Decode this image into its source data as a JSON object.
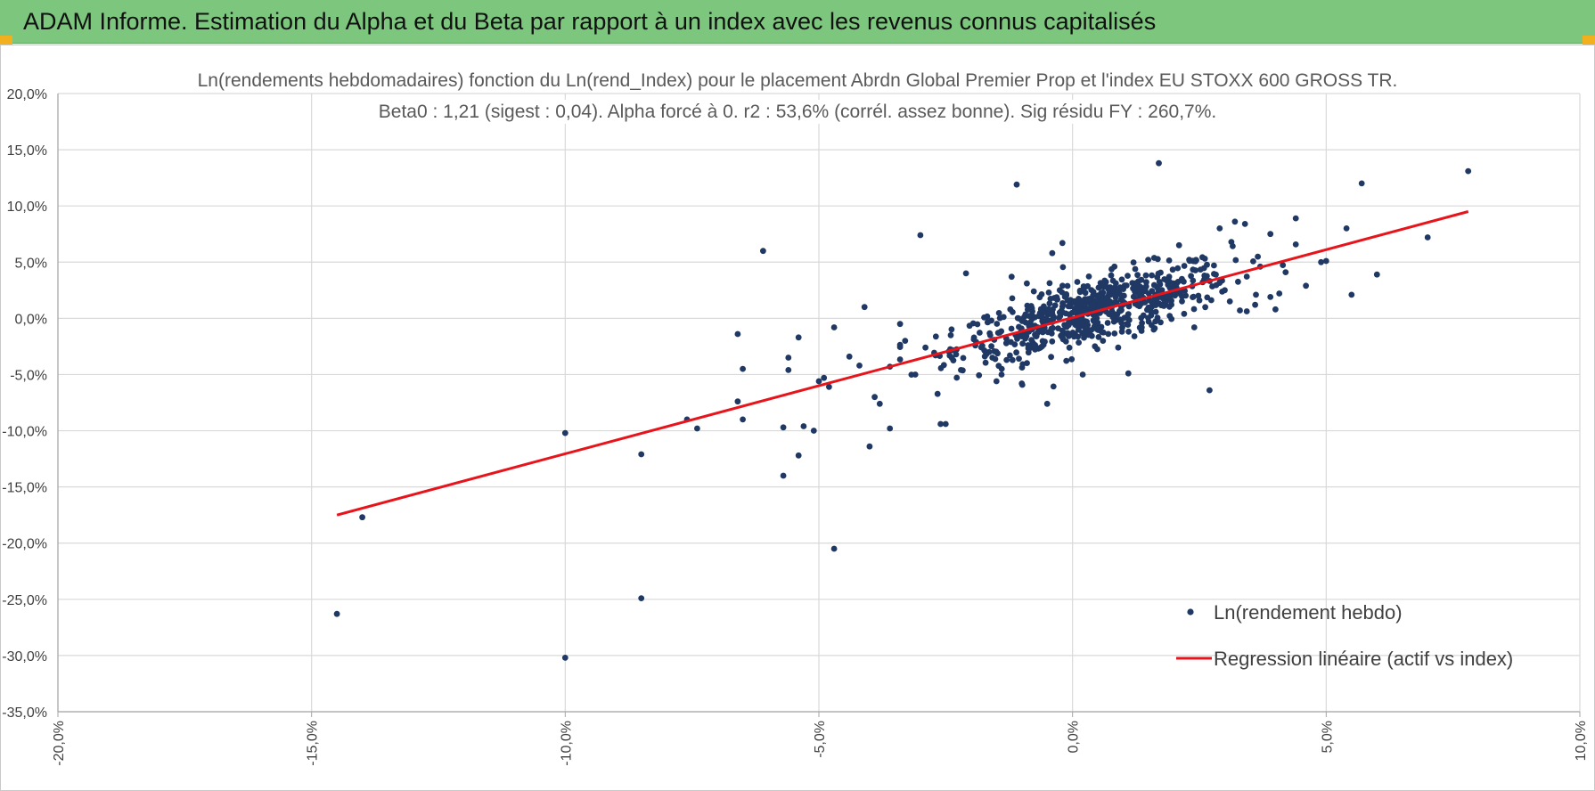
{
  "header": {
    "title": "ADAM Informe. Estimation du Alpha et du Beta par rapport à un index avec les revenus connus capitalisés"
  },
  "colors": {
    "banner": "#7dc67e",
    "points": "#203864",
    "regression": "#e8141b",
    "grid": "#d9d9d9",
    "corner_marks": "#f2b01e"
  },
  "chart_data": {
    "type": "scatter",
    "title_lines": [
      "Ln(rendements hebdomadaires) fonction du Ln(rend_Index) pour le placement Abrdn Global Premier Prop et l'index EU STOXX 600 GROSS TR.",
      "Beta0 : 1,21 (sigest : 0,04). Alpha forcé à 0. r2 : 53,6% (corrél. assez bonne). Sig résidu FY : 260,7%."
    ],
    "xlim": [
      -20,
      10
    ],
    "ylim": [
      -35,
      20
    ],
    "x_ticks": [
      "-20,0%",
      "-15,0%",
      "-10,0%",
      "-5,0%",
      "0,0%",
      "5,0%",
      "10,0%"
    ],
    "y_ticks": [
      "20,0%",
      "15,0%",
      "10,0%",
      "5,0%",
      "0,0%",
      "-5,0%",
      "-10,0%",
      "-15,0%",
      "-20,0%",
      "-25,0%",
      "-30,0%",
      "-35,0%"
    ],
    "grid": "vertical and horizontal major gridlines",
    "legend": {
      "placement": "bottom-right",
      "entries": [
        "Ln(rendement hebdo)",
        "Regression linéaire (actif vs index)"
      ]
    },
    "series": [
      {
        "name": "Ln(rendement hebdo)",
        "marker": "dot",
        "points": [
          [
            -14.5,
            -26.3
          ],
          [
            -14.0,
            -17.7
          ],
          [
            -10.0,
            -30.2
          ],
          [
            -10.0,
            -10.2
          ],
          [
            -8.5,
            -24.9
          ],
          [
            -8.5,
            -12.1
          ],
          [
            -7.6,
            -9.0
          ],
          [
            -7.4,
            -9.8
          ],
          [
            -6.6,
            -1.4
          ],
          [
            -6.6,
            -7.4
          ],
          [
            -6.5,
            -4.5
          ],
          [
            -6.5,
            -9.0
          ],
          [
            -6.1,
            6.0
          ],
          [
            -5.7,
            -14.0
          ],
          [
            -5.7,
            -9.7
          ],
          [
            -5.6,
            -3.5
          ],
          [
            -5.6,
            -4.6
          ],
          [
            -5.4,
            -1.7
          ],
          [
            -5.4,
            -12.2
          ],
          [
            -5.3,
            -9.6
          ],
          [
            -5.1,
            -10.0
          ],
          [
            -5.0,
            -5.6
          ],
          [
            -4.9,
            -5.3
          ],
          [
            -4.8,
            -6.1
          ],
          [
            -4.7,
            -0.8
          ],
          [
            -4.7,
            -20.5
          ],
          [
            -4.4,
            -3.4
          ],
          [
            -4.2,
            -4.2
          ],
          [
            -4.1,
            1.0
          ],
          [
            -4.0,
            -11.4
          ],
          [
            -3.9,
            -7.0
          ],
          [
            -3.8,
            -7.6
          ],
          [
            -3.6,
            -9.8
          ],
          [
            -3.4,
            -0.5
          ],
          [
            -3.0,
            7.4
          ],
          [
            -2.9,
            -2.6
          ],
          [
            -2.6,
            -9.4
          ],
          [
            -2.5,
            -9.4
          ],
          [
            -2.1,
            4.0
          ],
          [
            -1.7,
            -3.2
          ],
          [
            -1.5,
            -5.6
          ],
          [
            -1.2,
            3.7
          ],
          [
            -1.1,
            11.9
          ],
          [
            -1.0,
            -5.8
          ],
          [
            -0.5,
            -7.6
          ],
          [
            -0.4,
            5.8
          ],
          [
            -0.2,
            6.7
          ],
          [
            0.2,
            -5.0
          ],
          [
            0.6,
            -2.0
          ],
          [
            1.1,
            -4.9
          ],
          [
            1.6,
            -1.0
          ],
          [
            1.7,
            13.8
          ],
          [
            2.1,
            6.5
          ],
          [
            2.6,
            3.8
          ],
          [
            2.7,
            -6.4
          ],
          [
            2.9,
            8.0
          ],
          [
            3.2,
            8.6
          ],
          [
            3.4,
            8.4
          ],
          [
            3.9,
            7.5
          ],
          [
            4.4,
            8.9
          ],
          [
            4.6,
            2.9
          ],
          [
            4.9,
            5.0
          ],
          [
            5.0,
            5.1
          ],
          [
            5.4,
            8.0
          ],
          [
            5.5,
            2.1
          ],
          [
            5.7,
            12.0
          ],
          [
            6.0,
            3.9
          ],
          [
            7.0,
            7.2
          ],
          [
            7.8,
            13.1
          ],
          [
            3.9,
            1.9
          ],
          [
            4.0,
            0.8
          ],
          [
            3.6,
            1.2
          ],
          [
            3.1,
            1.5
          ],
          [
            3.0,
            2.5
          ],
          [
            2.9,
            3.2
          ],
          [
            3.3,
            0.7
          ],
          [
            2.5,
            1.6
          ],
          [
            2.2,
            0.4
          ],
          [
            2.0,
            2.2
          ],
          [
            1.8,
            1.1
          ],
          [
            1.5,
            -0.3
          ],
          [
            1.3,
            3.3
          ],
          [
            1.0,
            2.6
          ],
          [
            0.8,
            0.2
          ],
          [
            0.5,
            1.9
          ],
          [
            0.3,
            -0.6
          ],
          [
            0.1,
            1.3
          ],
          [
            -0.2,
            -1.1
          ],
          [
            -0.4,
            0.4
          ],
          [
            -0.6,
            -2.5
          ],
          [
            -0.8,
            0.9
          ],
          [
            -1.0,
            -1.6
          ],
          [
            -1.3,
            -3.7
          ],
          [
            -1.6,
            -0.2
          ],
          [
            -1.9,
            -2.1
          ],
          [
            -2.2,
            -4.6
          ],
          [
            -2.4,
            -1.5
          ],
          [
            -2.7,
            -3.3
          ],
          [
            -3.1,
            -5.0
          ],
          [
            -3.3,
            -2.0
          ],
          [
            -3.6,
            -4.3
          ],
          [
            -1.4,
            -5.0
          ],
          [
            -0.9,
            3.1
          ],
          [
            0.9,
            -2.6
          ],
          [
            2.4,
            -0.8
          ],
          [
            4.2,
            4.1
          ],
          [
            3.7,
            4.6
          ],
          [
            2.3,
            5.2
          ]
        ]
      }
    ],
    "regression": {
      "name": "Regression linéaire (actif vs index)",
      "beta": 1.21,
      "alpha": 0,
      "x_range": [
        -14.5,
        7.8
      ],
      "y_range": [
        -17.5,
        9.5
      ]
    },
    "cloud": {
      "description": "dense cluster of weekly observations around the origin",
      "x_center": 0.4,
      "y_center": 0.6,
      "x_sd": 1.35,
      "beta": 1.21,
      "residual_sd": 1.9,
      "count": 620
    }
  }
}
